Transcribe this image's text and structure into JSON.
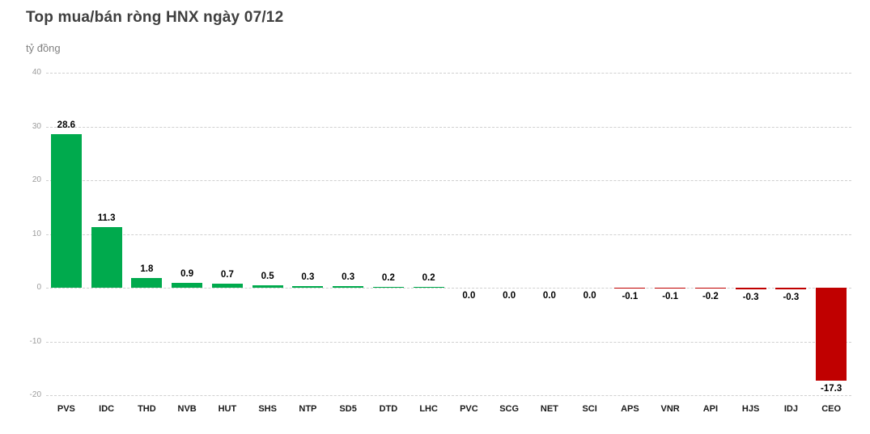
{
  "header": {
    "title": "Top mua/bán ròng HNX ngày 07/12",
    "unit_label": "tỷ đồng"
  },
  "chart_data": {
    "type": "bar",
    "title": "Top mua/bán ròng HNX ngày 07/12",
    "ylabel": "tỷ đồng",
    "xlabel": "",
    "categories": [
      "PVS",
      "IDC",
      "THD",
      "NVB",
      "HUT",
      "SHS",
      "NTP",
      "SD5",
      "DTD",
      "LHC",
      "PVC",
      "SCG",
      "NET",
      "SCI",
      "APS",
      "VNR",
      "API",
      "HJS",
      "IDJ",
      "CEO"
    ],
    "values": [
      28.6,
      11.3,
      1.8,
      0.9,
      0.7,
      0.5,
      0.3,
      0.3,
      0.2,
      0.2,
      0.0,
      0.0,
      0.0,
      0.0,
      -0.1,
      -0.1,
      -0.2,
      -0.3,
      -0.3,
      -17.3
    ],
    "value_label_decimals": 1,
    "ylim": [
      -20,
      40
    ],
    "yticks": [
      40,
      30,
      20,
      10,
      0,
      -10,
      -20
    ],
    "grid": "horizontal-dashed",
    "legend": "none",
    "positive_color": "#00aa4d",
    "negative_color": "#c00000",
    "grid_color": "#d0d0d0",
    "title_color": "#3f3f3f",
    "axis_label_color": "#9b9b9b"
  }
}
